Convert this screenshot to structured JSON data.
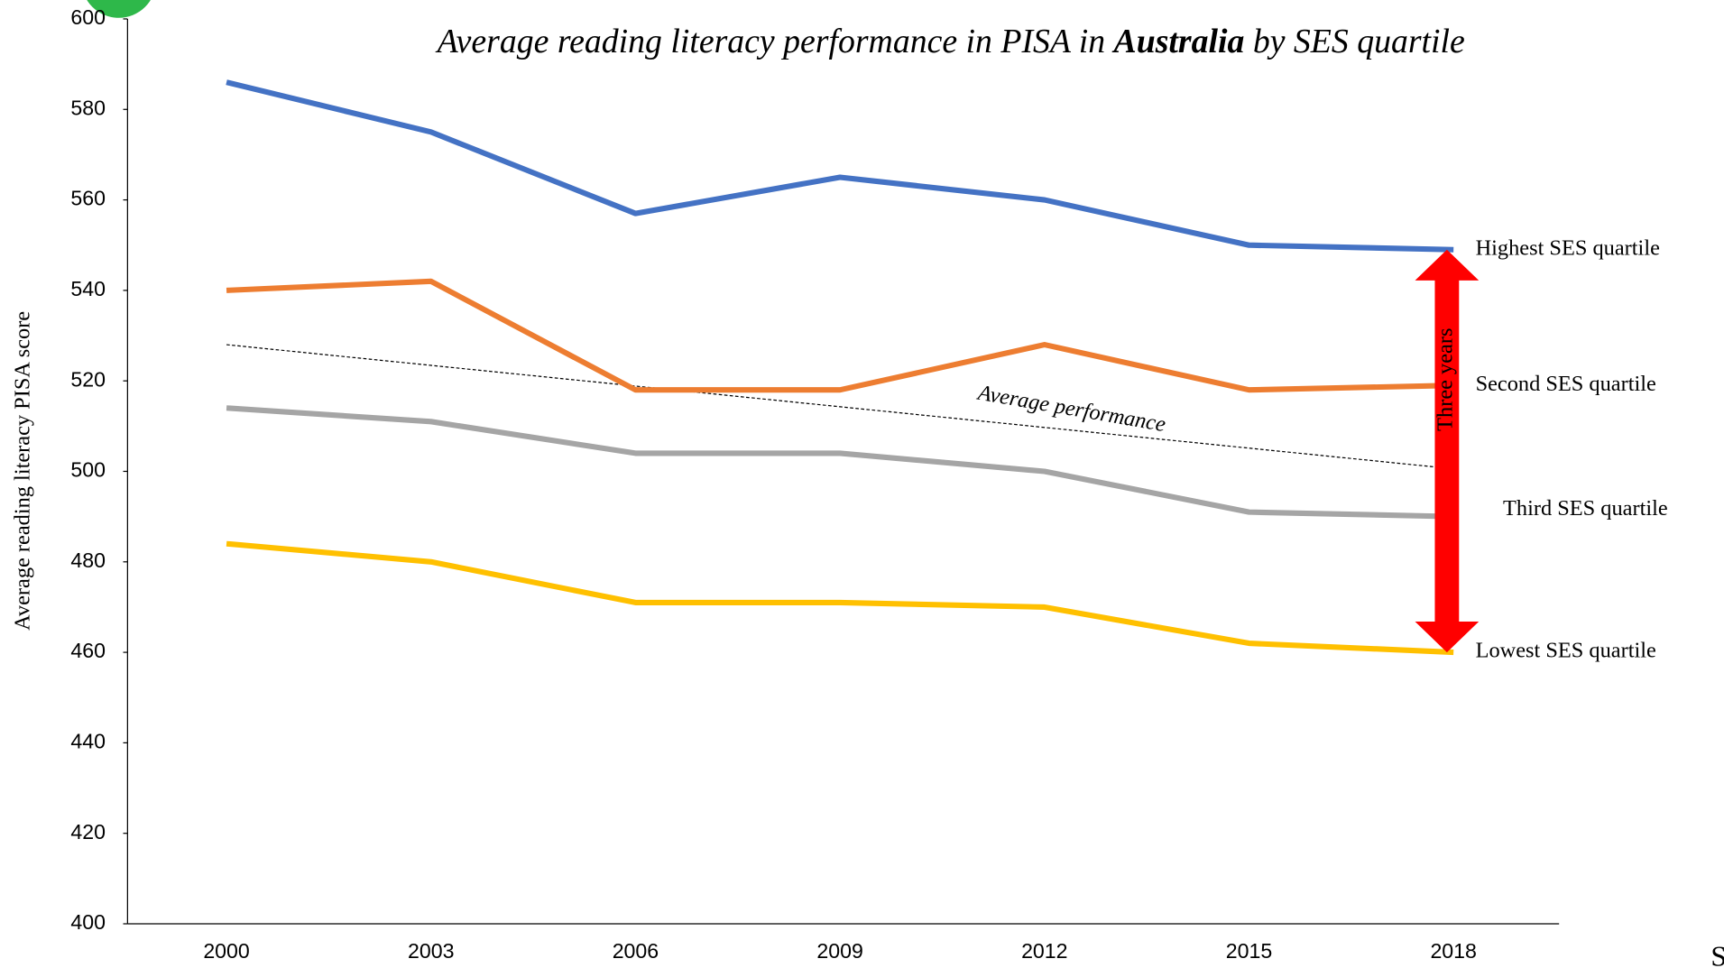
{
  "chart_data": {
    "type": "line",
    "title": [
      "Average reading literacy performance in PISA in ",
      "Australia",
      " by SES quartile"
    ],
    "ylabel": "Average reading literacy PISA score",
    "categories": [
      "2000",
      "2003",
      "2006",
      "2009",
      "2012",
      "2015",
      "2018"
    ],
    "series": [
      {
        "name": "Highest SES quartile",
        "color": "#4472c4",
        "values": [
          586,
          575,
          557,
          565,
          560,
          550,
          549
        ]
      },
      {
        "name": "Second SES quartile",
        "color": "#ed7d31",
        "values": [
          540,
          542,
          518,
          518,
          528,
          518,
          519
        ]
      },
      {
        "name": "Third SES quartile",
        "color": "#a5a5a5",
        "values": [
          514,
          511,
          504,
          504,
          500,
          491,
          490
        ]
      },
      {
        "name": "Lowest SES quartile",
        "color": "#ffc000",
        "values": [
          484,
          480,
          471,
          471,
          470,
          462,
          460
        ]
      }
    ],
    "trend": {
      "label": "Average performance",
      "start": 528,
      "end": 501
    },
    "annotation": "Three years",
    "corner_text": "S",
    "ylim": [
      400,
      600
    ],
    "yticks": [
      400,
      420,
      440,
      460,
      480,
      500,
      520,
      540,
      560,
      580,
      600
    ],
    "grid": false
  }
}
